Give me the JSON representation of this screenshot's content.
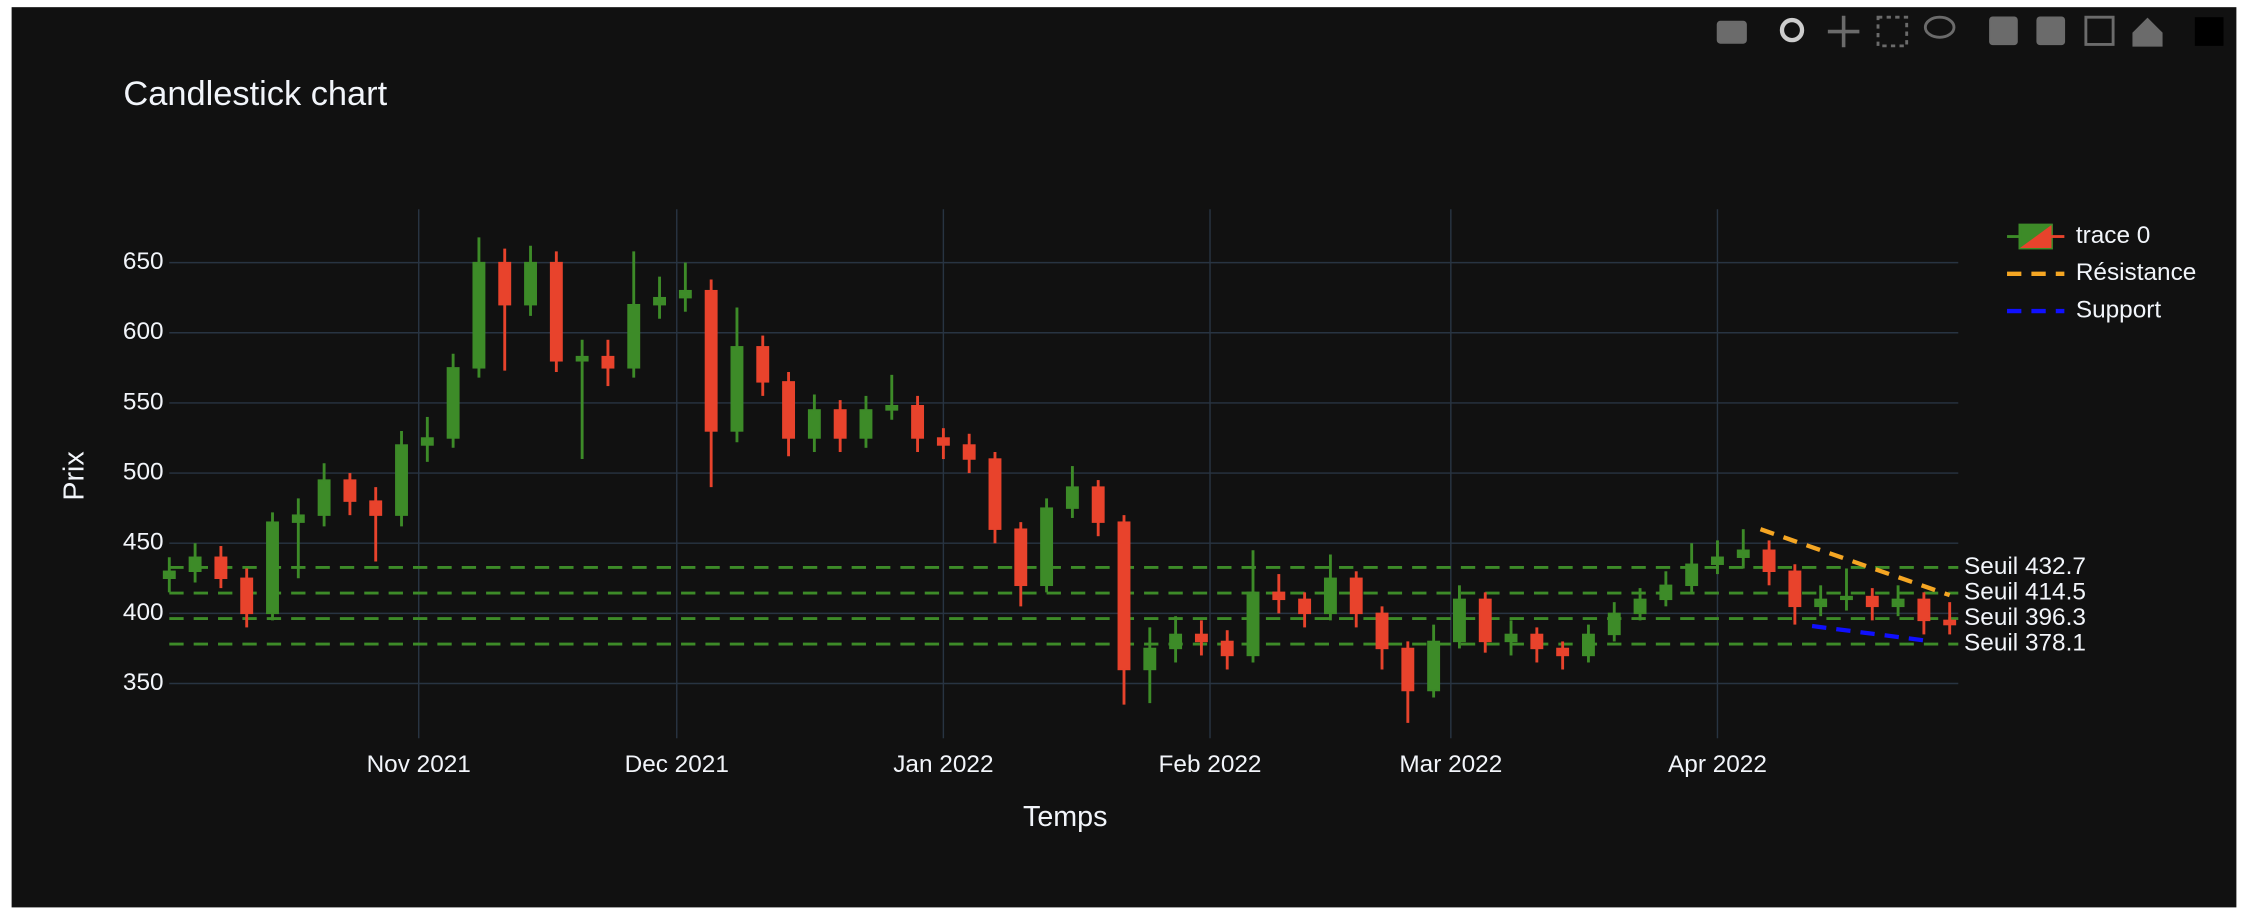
{
  "chart_data": {
    "type": "candlestick",
    "title": "Candlestick chart",
    "x_label": "Temps",
    "y_label": "Prix",
    "name": "trace 0",
    "increasing_color": "#3d8b28",
    "decreasing_color": "#e8432c",
    "x": [
      "2021-10-03",
      "2021-10-06",
      "2021-10-09",
      "2021-10-12",
      "2021-10-15",
      "2021-10-18",
      "2021-10-21",
      "2021-10-24",
      "2021-10-27",
      "2021-10-30",
      "2021-11-02",
      "2021-11-05",
      "2021-11-08",
      "2021-11-11",
      "2021-11-14",
      "2021-11-17",
      "2021-11-20",
      "2021-11-23",
      "2021-11-26",
      "2021-11-29",
      "2021-12-02",
      "2021-12-05",
      "2021-12-08",
      "2021-12-11",
      "2021-12-14",
      "2021-12-17",
      "2021-12-20",
      "2021-12-23",
      "2021-12-26",
      "2021-12-29",
      "2022-01-01",
      "2022-01-04",
      "2022-01-07",
      "2022-01-10",
      "2022-01-13",
      "2022-01-16",
      "2022-01-19",
      "2022-01-22",
      "2022-01-25",
      "2022-01-28",
      "2022-01-31",
      "2022-02-03",
      "2022-02-06",
      "2022-02-09",
      "2022-02-12",
      "2022-02-15",
      "2022-02-18",
      "2022-02-21",
      "2022-02-24",
      "2022-02-27",
      "2022-03-02",
      "2022-03-05",
      "2022-03-08",
      "2022-03-11",
      "2022-03-14",
      "2022-03-17",
      "2022-03-20",
      "2022-03-23",
      "2022-03-26",
      "2022-03-29",
      "2022-04-01",
      "2022-04-04",
      "2022-04-07",
      "2022-04-10",
      "2022-04-13",
      "2022-04-16",
      "2022-04-19",
      "2022-04-22",
      "2022-04-25",
      "2022-04-28"
    ],
    "open": [
      425,
      430,
      440,
      425,
      400,
      465,
      470,
      495,
      480,
      470,
      520,
      525,
      575,
      650,
      620,
      650,
      580,
      583,
      575,
      620,
      625,
      630,
      530,
      590,
      565,
      525,
      545,
      525,
      545,
      548,
      525,
      520,
      510,
      460,
      420,
      475,
      490,
      465,
      360,
      375,
      385,
      380,
      370,
      415,
      410,
      400,
      425,
      400,
      375,
      345,
      380,
      410,
      380,
      385,
      375,
      370,
      385,
      400,
      410,
      420,
      435,
      440,
      445,
      430,
      405,
      410,
      412,
      405,
      410,
      395
    ],
    "high": [
      440,
      450,
      448,
      432,
      472,
      482,
      507,
      500,
      490,
      530,
      540,
      585,
      668,
      660,
      662,
      658,
      595,
      595,
      658,
      640,
      650,
      638,
      618,
      598,
      572,
      556,
      552,
      555,
      570,
      555,
      532,
      528,
      515,
      465,
      482,
      505,
      495,
      470,
      390,
      398,
      395,
      388,
      445,
      428,
      415,
      442,
      430,
      405,
      380,
      392,
      420,
      415,
      395,
      390,
      380,
      392,
      408,
      418,
      430,
      450,
      452,
      460,
      452,
      435,
      420,
      432,
      418,
      420,
      415,
      408
    ],
    "low": [
      415,
      422,
      418,
      390,
      395,
      425,
      462,
      470,
      437,
      462,
      508,
      518,
      568,
      573,
      612,
      572,
      510,
      562,
      568,
      610,
      615,
      490,
      522,
      555,
      512,
      515,
      515,
      518,
      538,
      515,
      510,
      500,
      450,
      405,
      415,
      468,
      455,
      335,
      336,
      365,
      370,
      360,
      365,
      400,
      390,
      395,
      390,
      360,
      322,
      340,
      375,
      372,
      370,
      365,
      360,
      365,
      380,
      395,
      405,
      415,
      428,
      432,
      420,
      392,
      398,
      402,
      395,
      398,
      385,
      385
    ],
    "close": [
      430,
      440,
      425,
      400,
      465,
      470,
      495,
      480,
      470,
      520,
      525,
      575,
      650,
      620,
      650,
      580,
      583,
      575,
      620,
      625,
      630,
      530,
      590,
      565,
      525,
      545,
      525,
      545,
      548,
      525,
      520,
      510,
      460,
      420,
      475,
      490,
      465,
      360,
      375,
      385,
      380,
      370,
      415,
      410,
      400,
      425,
      400,
      375,
      345,
      380,
      410,
      380,
      385,
      375,
      370,
      385,
      400,
      410,
      420,
      435,
      440,
      445,
      430,
      405,
      410,
      412,
      405,
      410,
      395,
      392
    ],
    "series": [
      {
        "name": "Résistance",
        "color": "#f5a623",
        "x": [
          "2022-04-06",
          "2022-04-28"
        ],
        "values": [
          460,
          413
        ]
      },
      {
        "name": "Support",
        "color": "#1010ff",
        "x": [
          "2022-04-12",
          "2022-04-26"
        ],
        "values": [
          391,
          380
        ]
      }
    ],
    "thresholds": [
      {
        "value": 432.7,
        "label": "Seuil 432.7"
      },
      {
        "value": 414.5,
        "label": "Seuil 414.5"
      },
      {
        "value": 396.3,
        "label": "Seuil 396.3"
      },
      {
        "value": 378.1,
        "label": "Seuil 378.1"
      }
    ],
    "threshold_color": "#3d8b28",
    "xlim": [
      "2021-10-03",
      "2022-04-29"
    ],
    "xticks": [
      {
        "value": "2021-11-01",
        "label": "Nov 2021"
      },
      {
        "value": "2021-12-01",
        "label": "Dec 2021"
      },
      {
        "value": "2022-01-01",
        "label": "Jan 2022"
      },
      {
        "value": "2022-02-01",
        "label": "Feb 2022"
      },
      {
        "value": "2022-03-01",
        "label": "Mar 2022"
      },
      {
        "value": "2022-04-01",
        "label": "Apr 2022"
      }
    ],
    "ylim": [
      311,
      688
    ],
    "yticks": [
      350,
      400,
      450,
      500,
      550,
      600,
      650
    ],
    "grid": true,
    "legend": "right"
  }
}
